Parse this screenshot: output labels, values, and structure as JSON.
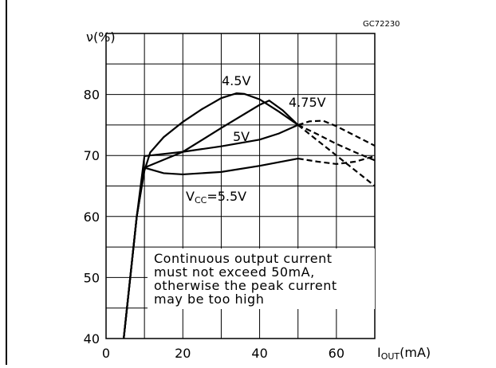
{
  "chart_data": {
    "type": "line",
    "code": "GC72230",
    "y_label": "ν(%)",
    "x_label": {
      "main": "I",
      "sub": "OUT",
      "unit": "(mA)"
    },
    "vcc_label": {
      "main": "V",
      "sub": "CC",
      "rest": "="
    },
    "xlim": [
      0,
      70
    ],
    "ylim": [
      40,
      90
    ],
    "xticks": [
      0,
      20,
      40,
      60
    ],
    "yticks": [
      40,
      50,
      60,
      70,
      80
    ],
    "xgrid": [
      0,
      10,
      20,
      30,
      40,
      50,
      60,
      70
    ],
    "ygrid": [
      45,
      50,
      55,
      60,
      65,
      70,
      75,
      80,
      85,
      90
    ],
    "grid": true,
    "measured_limit": 50,
    "note": [
      "Continuous output current",
      "must not exceed 50mA,",
      "otherwise the peak current",
      "may be too high"
    ],
    "series": [
      {
        "name": "4.5V",
        "color": "#000000",
        "x": [
          4.6,
          8,
          10,
          11.5,
          15,
          20,
          25,
          30,
          34,
          36,
          40,
          45,
          50,
          55,
          60,
          65,
          70
        ],
        "values": [
          40,
          60,
          67.5,
          70.5,
          73,
          75.5,
          77.6,
          79.4,
          80.2,
          80.1,
          79.2,
          77.2,
          75,
          73.5,
          71.9,
          70.5,
          69.2
        ]
      },
      {
        "name": "4.75V",
        "color": "#000000",
        "x": [
          4.6,
          8,
          10,
          20,
          30,
          40,
          42.5,
          46,
          50,
          55,
          60,
          65,
          70
        ],
        "values": [
          40,
          60,
          68,
          70.6,
          74.5,
          78.3,
          79,
          77.4,
          75,
          72.5,
          70,
          67.5,
          65
        ]
      },
      {
        "name": "5V",
        "color": "#000000",
        "x": [
          4.6,
          8,
          10,
          20,
          30,
          40,
          45,
          50,
          53,
          56.5,
          60,
          65,
          70
        ],
        "values": [
          40,
          60,
          69.9,
          70.6,
          71.5,
          72.6,
          73.6,
          75,
          75.6,
          75.7,
          74.8,
          73.2,
          71.6
        ]
      },
      {
        "name": "5.5V",
        "color": "#000000",
        "x": [
          4.6,
          8,
          10,
          15,
          20,
          30,
          40,
          50,
          55,
          60,
          65,
          70
        ],
        "values": [
          40,
          60,
          68,
          67.1,
          66.9,
          67.3,
          68.3,
          69.5,
          69,
          68.6,
          69,
          69.9
        ]
      }
    ]
  }
}
